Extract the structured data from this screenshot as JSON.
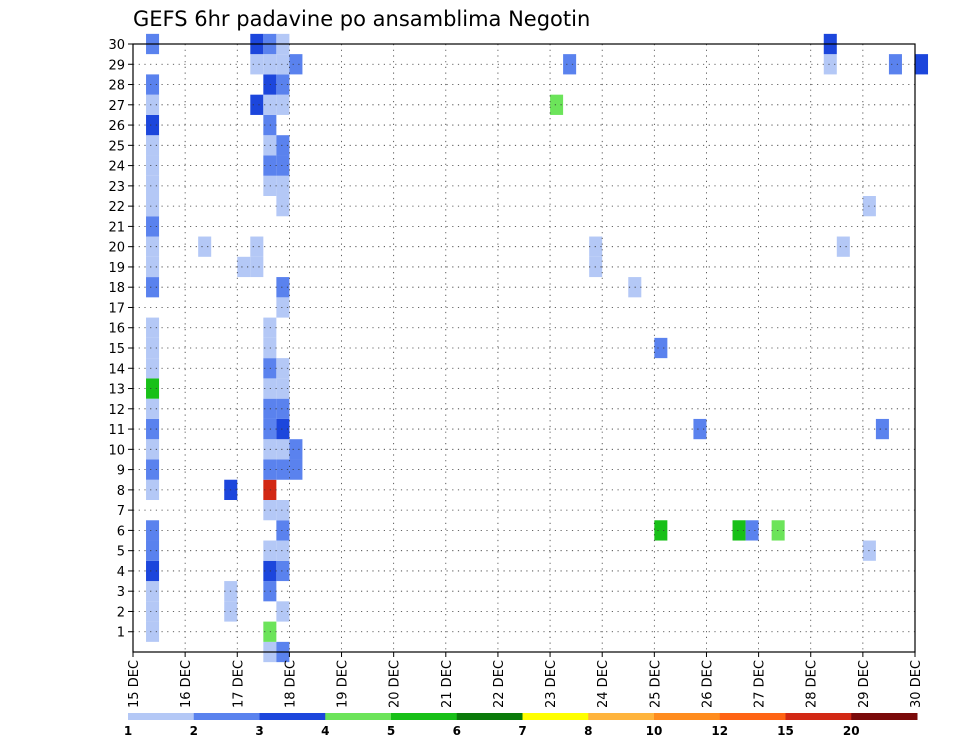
{
  "chart_data": {
    "type": "heatmap",
    "title": "GEFS 6hr padavine po ansamblima Negotin",
    "x_ticks": [
      "15 DEC",
      "16 DEC",
      "17 DEC",
      "18 DEC",
      "19 DEC",
      "20 DEC",
      "21 DEC",
      "22 DEC",
      "23 DEC",
      "24 DEC",
      "25 DEC",
      "26 DEC",
      "27 DEC",
      "28 DEC",
      "29 DEC",
      "30 DEC"
    ],
    "y_ticks": [
      "1",
      "2",
      "3",
      "4",
      "5",
      "6",
      "7",
      "8",
      "9",
      "10",
      "11",
      "12",
      "13",
      "14",
      "15",
      "16",
      "17",
      "18",
      "19",
      "20",
      "21",
      "22",
      "23",
      "24",
      "25",
      "26",
      "27",
      "28",
      "29",
      "30"
    ],
    "xlim": [
      "15 DEC",
      "30 DEC"
    ],
    "ylim": [
      0,
      30
    ],
    "time_step_hours": 6,
    "grid": true,
    "colorbar": {
      "labels": [
        "1",
        "2",
        "3",
        "4",
        "5",
        "6",
        "7",
        "8",
        "10",
        "12",
        "15",
        "20"
      ],
      "colors": [
        "#b4c8f6",
        "#5a82ee",
        "#1c46dc",
        "#6ce45a",
        "#18c018",
        "#0a7a0a",
        "#ffff00",
        "#ffb43c",
        "#ff8c1e",
        "#ff6414",
        "#d22814",
        "#7a0a0a"
      ]
    },
    "cells": [
      {
        "member": 0,
        "date": "17 DEC 12Z",
        "class": 1
      },
      {
        "member": 0,
        "date": "17 DEC 18Z",
        "class": 2
      },
      {
        "member": 1,
        "date": "15 DEC 06Z",
        "class": 1
      },
      {
        "member": 1,
        "date": "17 DEC 12Z",
        "class": 4
      },
      {
        "member": 2,
        "date": "15 DEC 06Z",
        "class": 1
      },
      {
        "member": 2,
        "date": "16 DEC 18Z",
        "class": 1
      },
      {
        "member": 2,
        "date": "17 DEC 18Z",
        "class": 1
      },
      {
        "member": 3,
        "date": "15 DEC 06Z",
        "class": 1
      },
      {
        "member": 3,
        "date": "16 DEC 18Z",
        "class": 1
      },
      {
        "member": 3,
        "date": "17 DEC 12Z",
        "class": 2
      },
      {
        "member": 4,
        "date": "15 DEC 06Z",
        "class": 3
      },
      {
        "member": 4,
        "date": "17 DEC 12Z",
        "class": 3
      },
      {
        "member": 4,
        "date": "17 DEC 18Z",
        "class": 2
      },
      {
        "member": 5,
        "date": "15 DEC 06Z",
        "class": 2
      },
      {
        "member": 5,
        "date": "17 DEC 12Z",
        "class": 1
      },
      {
        "member": 5,
        "date": "17 DEC 18Z",
        "class": 1
      },
      {
        "member": 5,
        "date": "29 DEC 00Z",
        "class": 1
      },
      {
        "member": 6,
        "date": "15 DEC 06Z",
        "class": 2
      },
      {
        "member": 6,
        "date": "17 DEC 18Z",
        "class": 2
      },
      {
        "member": 6,
        "date": "25 DEC 00Z",
        "class": 5
      },
      {
        "member": 6,
        "date": "26 DEC 12Z",
        "class": 5
      },
      {
        "member": 6,
        "date": "26 DEC 18Z",
        "class": 2
      },
      {
        "member": 6,
        "date": "27 DEC 06Z",
        "class": 4
      },
      {
        "member": 7,
        "date": "17 DEC 12Z",
        "class": 1
      },
      {
        "member": 7,
        "date": "17 DEC 18Z",
        "class": 1
      },
      {
        "member": 8,
        "date": "15 DEC 06Z",
        "class": 1
      },
      {
        "member": 8,
        "date": "16 DEC 18Z",
        "class": 3
      },
      {
        "member": 8,
        "date": "17 DEC 12Z",
        "class": 11
      },
      {
        "member": 9,
        "date": "15 DEC 06Z",
        "class": 2
      },
      {
        "member": 9,
        "date": "17 DEC 12Z",
        "class": 2
      },
      {
        "member": 9,
        "date": "17 DEC 18Z",
        "class": 2
      },
      {
        "member": 9,
        "date": "18 DEC 00Z",
        "class": 2
      },
      {
        "member": 10,
        "date": "15 DEC 06Z",
        "class": 1
      },
      {
        "member": 10,
        "date": "17 DEC 12Z",
        "class": 1
      },
      {
        "member": 10,
        "date": "17 DEC 18Z",
        "class": 1
      },
      {
        "member": 10,
        "date": "18 DEC 00Z",
        "class": 2
      },
      {
        "member": 11,
        "date": "15 DEC 06Z",
        "class": 2
      },
      {
        "member": 11,
        "date": "17 DEC 12Z",
        "class": 2
      },
      {
        "member": 11,
        "date": "17 DEC 18Z",
        "class": 3
      },
      {
        "member": 11,
        "date": "25 DEC 18Z",
        "class": 2
      },
      {
        "member": 11,
        "date": "29 DEC 06Z",
        "class": 2
      },
      {
        "member": 12,
        "date": "15 DEC 06Z",
        "class": 1
      },
      {
        "member": 12,
        "date": "17 DEC 12Z",
        "class": 2
      },
      {
        "member": 12,
        "date": "17 DEC 18Z",
        "class": 2
      },
      {
        "member": 13,
        "date": "15 DEC 06Z",
        "class": 5
      },
      {
        "member": 13,
        "date": "17 DEC 12Z",
        "class": 1
      },
      {
        "member": 13,
        "date": "17 DEC 18Z",
        "class": 1
      },
      {
        "member": 14,
        "date": "15 DEC 06Z",
        "class": 1
      },
      {
        "member": 14,
        "date": "17 DEC 12Z",
        "class": 2
      },
      {
        "member": 14,
        "date": "17 DEC 18Z",
        "class": 1
      },
      {
        "member": 15,
        "date": "15 DEC 06Z",
        "class": 1
      },
      {
        "member": 15,
        "date": "17 DEC 12Z",
        "class": 1
      },
      {
        "member": 15,
        "date": "25 DEC 00Z",
        "class": 2
      },
      {
        "member": 16,
        "date": "15 DEC 06Z",
        "class": 1
      },
      {
        "member": 16,
        "date": "17 DEC 12Z",
        "class": 1
      },
      {
        "member": 17,
        "date": "17 DEC 18Z",
        "class": 1
      },
      {
        "member": 18,
        "date": "15 DEC 06Z",
        "class": 2
      },
      {
        "member": 18,
        "date": "17 DEC 18Z",
        "class": 2
      },
      {
        "member": 18,
        "date": "24 DEC 12Z",
        "class": 1
      },
      {
        "member": 19,
        "date": "15 DEC 06Z",
        "class": 1
      },
      {
        "member": 19,
        "date": "17 DEC 00Z",
        "class": 1
      },
      {
        "member": 19,
        "date": "17 DEC 06Z",
        "class": 1
      },
      {
        "member": 19,
        "date": "23 DEC 18Z",
        "class": 1
      },
      {
        "member": 20,
        "date": "15 DEC 06Z",
        "class": 1
      },
      {
        "member": 20,
        "date": "16 DEC 06Z",
        "class": 1
      },
      {
        "member": 20,
        "date": "17 DEC 06Z",
        "class": 1
      },
      {
        "member": 20,
        "date": "23 DEC 18Z",
        "class": 1
      },
      {
        "member": 20,
        "date": "28 DEC 12Z",
        "class": 1
      },
      {
        "member": 21,
        "date": "15 DEC 06Z",
        "class": 2
      },
      {
        "member": 22,
        "date": "15 DEC 06Z",
        "class": 1
      },
      {
        "member": 22,
        "date": "17 DEC 18Z",
        "class": 1
      },
      {
        "member": 22,
        "date": "29 DEC 00Z",
        "class": 1
      },
      {
        "member": 23,
        "date": "15 DEC 06Z",
        "class": 1
      },
      {
        "member": 23,
        "date": "17 DEC 12Z",
        "class": 1
      },
      {
        "member": 23,
        "date": "17 DEC 18Z",
        "class": 1
      },
      {
        "member": 24,
        "date": "15 DEC 06Z",
        "class": 1
      },
      {
        "member": 24,
        "date": "17 DEC 12Z",
        "class": 2
      },
      {
        "member": 24,
        "date": "17 DEC 18Z",
        "class": 2
      },
      {
        "member": 25,
        "date": "15 DEC 06Z",
        "class": 1
      },
      {
        "member": 25,
        "date": "17 DEC 12Z",
        "class": 1
      },
      {
        "member": 25,
        "date": "17 DEC 18Z",
        "class": 2
      },
      {
        "member": 26,
        "date": "15 DEC 06Z",
        "class": 3
      },
      {
        "member": 26,
        "date": "17 DEC 12Z",
        "class": 2
      },
      {
        "member": 27,
        "date": "15 DEC 06Z",
        "class": 1
      },
      {
        "member": 27,
        "date": "17 DEC 06Z",
        "class": 3
      },
      {
        "member": 27,
        "date": "17 DEC 12Z",
        "class": 1
      },
      {
        "member": 27,
        "date": "17 DEC 18Z",
        "class": 1
      },
      {
        "member": 27,
        "date": "23 DEC 00Z",
        "class": 4
      },
      {
        "member": 28,
        "date": "15 DEC 06Z",
        "class": 2
      },
      {
        "member": 28,
        "date": "17 DEC 12Z",
        "class": 3
      },
      {
        "member": 28,
        "date": "17 DEC 18Z",
        "class": 2
      },
      {
        "member": 29,
        "date": "17 DEC 06Z",
        "class": 1
      },
      {
        "member": 29,
        "date": "17 DEC 12Z",
        "class": 1
      },
      {
        "member": 29,
        "date": "17 DEC 18Z",
        "class": 1
      },
      {
        "member": 29,
        "date": "18 DEC 00Z",
        "class": 2
      },
      {
        "member": 29,
        "date": "23 DEC 06Z",
        "class": 2
      },
      {
        "member": 29,
        "date": "28 DEC 06Z",
        "class": 1
      },
      {
        "member": 29,
        "date": "29 DEC 12Z",
        "class": 2
      },
      {
        "member": 29,
        "date": "30 DEC 00Z",
        "class": 3
      },
      {
        "member": 30,
        "date": "15 DEC 06Z",
        "class": 2
      },
      {
        "member": 30,
        "date": "17 DEC 06Z",
        "class": 3
      },
      {
        "member": 30,
        "date": "17 DEC 12Z",
        "class": 2
      },
      {
        "member": 30,
        "date": "17 DEC 18Z",
        "class": 1
      },
      {
        "member": 30,
        "date": "28 DEC 06Z",
        "class": 3
      }
    ]
  }
}
